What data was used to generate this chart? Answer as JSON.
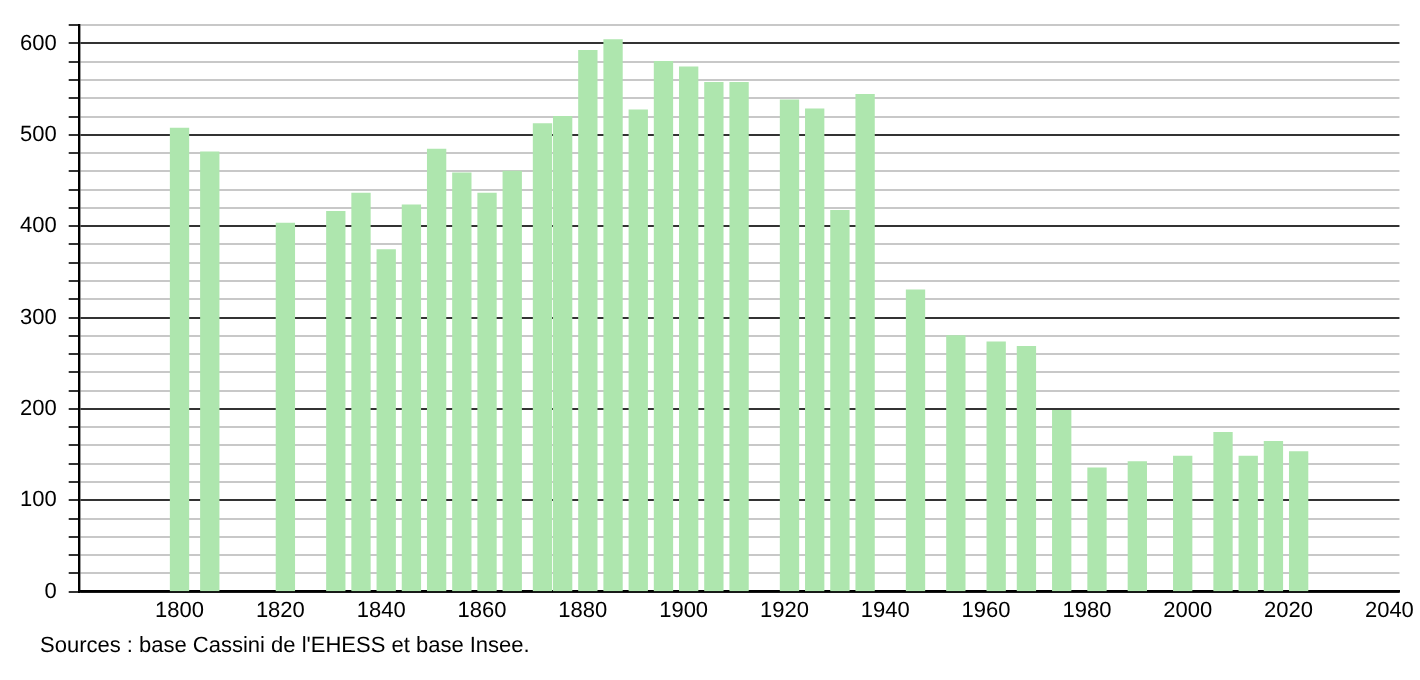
{
  "chart_data": {
    "type": "bar",
    "x": [
      1800,
      1806,
      1821,
      1831,
      1836,
      1841,
      1846,
      1851,
      1856,
      1861,
      1866,
      1872,
      1876,
      1881,
      1886,
      1891,
      1896,
      1901,
      1906,
      1911,
      1921,
      1926,
      1931,
      1936,
      1946,
      1954,
      1962,
      1968,
      1975,
      1982,
      1990,
      1999,
      2007,
      2012,
      2017,
      2022
    ],
    "values": [
      507,
      481,
      403,
      416,
      436,
      374,
      423,
      484,
      458,
      436,
      460,
      512,
      520,
      592,
      604,
      527,
      580,
      574,
      557,
      557,
      538,
      528,
      417,
      544,
      330,
      280,
      273,
      268,
      198,
      135,
      142,
      148,
      174,
      148,
      164,
      153
    ],
    "color": "#aee6ae",
    "xlim": [
      1780,
      2042
    ],
    "xticks": [
      1800,
      1820,
      1840,
      1860,
      1880,
      1900,
      1920,
      1940,
      1960,
      1980,
      2000,
      2020,
      2040
    ],
    "ylim": [
      0,
      620
    ],
    "yticks": [
      0,
      {
        "value": 20,
        "label": null
      },
      {
        "value": 40,
        "label": null
      },
      {
        "value": 60,
        "label": null
      },
      {
        "value": 80,
        "label": null
      },
      100,
      {
        "value": 120,
        "label": null
      },
      {
        "value": 140,
        "label": null
      },
      {
        "value": 160,
        "label": null
      },
      {
        "value": 180,
        "label": null
      },
      200,
      {
        "value": 220,
        "label": null
      },
      {
        "value": 240,
        "label": null
      },
      {
        "value": 260,
        "label": null
      },
      {
        "value": 280,
        "label": null
      },
      300,
      {
        "value": 320,
        "label": null
      },
      {
        "value": 340,
        "label": null
      },
      {
        "value": 360,
        "label": null
      },
      {
        "value": 380,
        "label": null
      },
      400,
      {
        "value": 420,
        "label": null
      },
      {
        "value": 440,
        "label": null
      },
      {
        "value": 460,
        "label": null
      },
      {
        "value": 480,
        "label": null
      },
      500,
      {
        "value": 520,
        "label": null
      },
      {
        "value": 540,
        "label": null
      },
      {
        "value": 560,
        "label": null
      },
      {
        "value": 580,
        "label": null
      },
      600,
      {
        "value": 620,
        "label": null
      }
    ],
    "grid": "y",
    "legend": false,
    "annotations": [
      "Sources : base Cassini de l'EHESS et base Insee."
    ]
  }
}
